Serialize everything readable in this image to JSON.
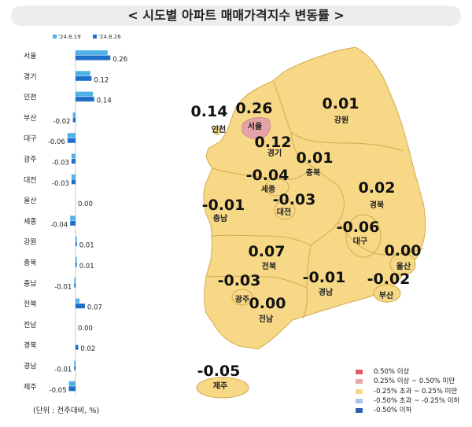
{
  "title": "< 시도별 아파트 매매가격지수 변동률 >",
  "unit_note": "(단위 : 전주대비, %)",
  "colors": {
    "prev_week": "#4fb2e6",
    "this_week": "#1f6fc9",
    "map_fill": "#f6d887",
    "map_border": "#d3ab4c",
    "seoul_fill": "#e5a3a7"
  },
  "legend": [
    {
      "label": "0.50% 이상",
      "color": "#e15b61"
    },
    {
      "label": "0.25% 이상 ~ 0.50% 미만",
      "color": "#e8a7ab"
    },
    {
      "label": "-0.25% 초과 ~ 0.25% 미만",
      "color": "#f6d887"
    },
    {
      "label": "-0.50% 초과 ~ -0.25% 이하",
      "color": "#a9c5e6"
    },
    {
      "label": "-0.50% 이하",
      "color": "#2e5fae"
    }
  ],
  "map_regions": [
    {
      "name": "서울",
      "value": "0.26"
    },
    {
      "name": "인천",
      "value": "0.14"
    },
    {
      "name": "경기",
      "value": "0.12"
    },
    {
      "name": "강원",
      "value": "0.01"
    },
    {
      "name": "충북",
      "value": "0.01"
    },
    {
      "name": "세종",
      "value": "-0.04"
    },
    {
      "name": "대전",
      "value": "-0.03"
    },
    {
      "name": "충남",
      "value": "-0.01"
    },
    {
      "name": "경북",
      "value": "0.02"
    },
    {
      "name": "대구",
      "value": "-0.06"
    },
    {
      "name": "전북",
      "value": "0.07"
    },
    {
      "name": "울산",
      "value": "0.00"
    },
    {
      "name": "광주",
      "value": "-0.03"
    },
    {
      "name": "경남",
      "value": "-0.01"
    },
    {
      "name": "부산",
      "value": "-0.02"
    },
    {
      "name": "전남",
      "value": "0.00"
    },
    {
      "name": "제주",
      "value": "-0.05"
    }
  ],
  "chart_data": {
    "type": "bar",
    "orientation": "horizontal",
    "categories": [
      "서울",
      "경기",
      "인천",
      "부산",
      "대구",
      "광주",
      "대전",
      "울산",
      "세종",
      "강원",
      "충북",
      "충남",
      "전북",
      "전남",
      "경북",
      "경남",
      "제주"
    ],
    "series": [
      {
        "name": "'24.8.19",
        "values": [
          0.24,
          0.11,
          0.13,
          -0.02,
          -0.06,
          -0.03,
          -0.03,
          0.0,
          -0.04,
          0.01,
          0.01,
          -0.01,
          0.03,
          0.0,
          0.0,
          -0.01,
          -0.05
        ]
      },
      {
        "name": "'24.8.26",
        "values": [
          0.26,
          0.12,
          0.14,
          -0.02,
          -0.06,
          -0.03,
          -0.03,
          0.0,
          -0.04,
          0.01,
          0.01,
          -0.01,
          0.07,
          0.0,
          0.02,
          -0.01,
          -0.05
        ]
      }
    ],
    "value_labels": [
      "0.26",
      "0.12",
      "0.14",
      "-0.02",
      "-0.06",
      "-0.03",
      "-0.03",
      "0.00",
      "-0.04",
      "0.01",
      "0.01",
      "-0.01",
      "0.07",
      "0.00",
      "0.02",
      "-0.01",
      "-0.05"
    ],
    "legend_position": "top"
  }
}
